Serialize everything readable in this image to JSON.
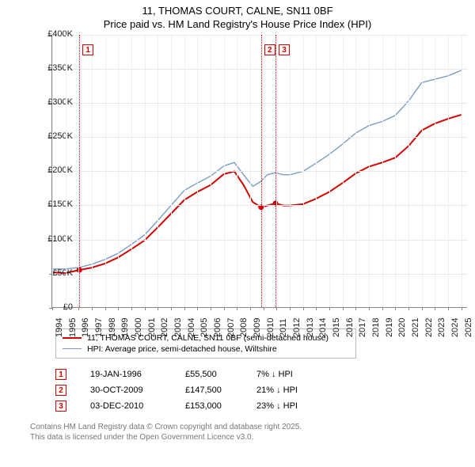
{
  "title": {
    "line1": "11, THOMAS COURT, CALNE, SN11 0BF",
    "line2": "Price paid vs. HM Land Registry's House Price Index (HPI)"
  },
  "chart": {
    "type": "line",
    "background_color": "#ffffff",
    "grid_color": "#e9e9e9",
    "axis_color": "#888888",
    "x_years": [
      1994,
      1995,
      1996,
      1997,
      1998,
      1999,
      2000,
      2001,
      2002,
      2003,
      2004,
      2005,
      2006,
      2007,
      2008,
      2009,
      2010,
      2011,
      2012,
      2013,
      2014,
      2015,
      2016,
      2017,
      2018,
      2019,
      2020,
      2021,
      2022,
      2023,
      2024,
      2025
    ],
    "x_min": 1994,
    "x_max": 2025.5,
    "y_ticks": [
      0,
      50000,
      100000,
      150000,
      200000,
      250000,
      300000,
      350000,
      400000
    ],
    "y_tick_labels": [
      "£0",
      "£50K",
      "£100K",
      "£150K",
      "£200K",
      "£250K",
      "£300K",
      "£350K",
      "£400K"
    ],
    "y_min": 0,
    "y_max": 400000,
    "label_fontsize": 11,
    "series": [
      {
        "name": "price_paid",
        "label": "11, THOMAS COURT, CALNE, SN11 0BF (semi-detached house)",
        "color": "#d40000",
        "line_width": 2,
        "points": [
          [
            1994.0,
            52000
          ],
          [
            1995.0,
            51000
          ],
          [
            1996.05,
            55500
          ],
          [
            1997.0,
            59000
          ],
          [
            1998.0,
            65000
          ],
          [
            1999.0,
            74000
          ],
          [
            2000.0,
            86000
          ],
          [
            2001.0,
            99000
          ],
          [
            2002.0,
            118000
          ],
          [
            2003.0,
            138000
          ],
          [
            2004.0,
            158000
          ],
          [
            2005.0,
            170000
          ],
          [
            2006.0,
            180000
          ],
          [
            2007.0,
            196000
          ],
          [
            2007.8,
            200000
          ],
          [
            2008.5,
            180000
          ],
          [
            2009.2,
            155000
          ],
          [
            2009.83,
            147500
          ],
          [
            2010.3,
            150000
          ],
          [
            2010.92,
            153000
          ],
          [
            2011.5,
            150000
          ],
          [
            2012.0,
            150000
          ],
          [
            2013.0,
            152000
          ],
          [
            2014.0,
            160000
          ],
          [
            2015.0,
            170000
          ],
          [
            2016.0,
            183000
          ],
          [
            2017.0,
            197000
          ],
          [
            2018.0,
            207000
          ],
          [
            2019.0,
            213000
          ],
          [
            2020.0,
            220000
          ],
          [
            2021.0,
            237000
          ],
          [
            2022.0,
            260000
          ],
          [
            2023.0,
            270000
          ],
          [
            2024.0,
            277000
          ],
          [
            2025.0,
            283000
          ]
        ]
      },
      {
        "name": "hpi",
        "label": "HPI: Average price, semi-detached house, Wiltshire",
        "color": "#7a9cc6",
        "line_width": 1.4,
        "points": [
          [
            1994.0,
            57000
          ],
          [
            1995.0,
            57000
          ],
          [
            1996.0,
            59000
          ],
          [
            1997.0,
            64000
          ],
          [
            1998.0,
            71000
          ],
          [
            1999.0,
            80000
          ],
          [
            2000.0,
            93000
          ],
          [
            2001.0,
            107000
          ],
          [
            2002.0,
            128000
          ],
          [
            2003.0,
            150000
          ],
          [
            2004.0,
            172000
          ],
          [
            2005.0,
            183000
          ],
          [
            2006.0,
            193000
          ],
          [
            2007.0,
            208000
          ],
          [
            2007.8,
            213000
          ],
          [
            2008.5,
            195000
          ],
          [
            2009.2,
            178000
          ],
          [
            2009.8,
            185000
          ],
          [
            2010.3,
            195000
          ],
          [
            2010.9,
            198000
          ],
          [
            2011.5,
            195000
          ],
          [
            2012.0,
            195000
          ],
          [
            2013.0,
            200000
          ],
          [
            2014.0,
            212000
          ],
          [
            2015.0,
            225000
          ],
          [
            2016.0,
            240000
          ],
          [
            2017.0,
            256000
          ],
          [
            2018.0,
            267000
          ],
          [
            2019.0,
            273000
          ],
          [
            2020.0,
            282000
          ],
          [
            2021.0,
            303000
          ],
          [
            2022.0,
            330000
          ],
          [
            2023.0,
            335000
          ],
          [
            2024.0,
            340000
          ],
          [
            2025.0,
            348000
          ]
        ]
      }
    ],
    "sale_markers": [
      {
        "num": "1",
        "year": 1996.05,
        "date": "19-JAN-1996",
        "price": 55500,
        "price_label": "£55,500",
        "delta": "7% ↓ HPI"
      },
      {
        "num": "2",
        "year": 2009.83,
        "date": "30-OCT-2009",
        "price": 147500,
        "price_label": "£147,500",
        "delta": "21% ↓ HPI"
      },
      {
        "num": "3",
        "year": 2010.92,
        "date": "03-DEC-2010",
        "price": 153000,
        "price_label": "£153,000",
        "delta": "23% ↓ HPI"
      }
    ]
  },
  "footer": {
    "line1": "Contains HM Land Registry data © Crown copyright and database right 2025.",
    "line2": "This data is licensed under the Open Government Licence v3.0."
  }
}
